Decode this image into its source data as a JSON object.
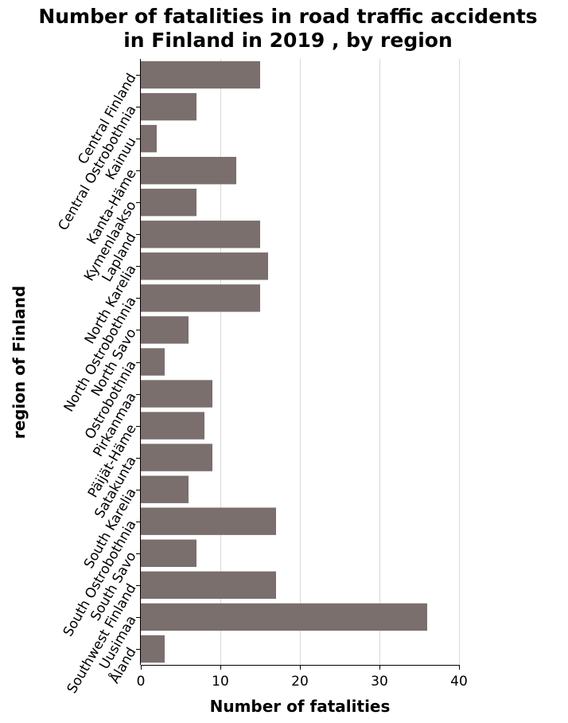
{
  "chart_data": {
    "type": "bar",
    "orientation": "horizontal",
    "title_lines": [
      "Number of fatalities in road traffic accidents",
      "in Finland in 2019 , by region"
    ],
    "xlabel": "Number of fatalities",
    "ylabel": "region of Finland",
    "xlim": [
      0,
      40
    ],
    "xticks": [
      0,
      10,
      20,
      30,
      40
    ],
    "grid": true,
    "bar_color": "#7a6f6d",
    "categories": [
      "Central Finland",
      "Central Ostrobothnia",
      "Kainuu",
      "Kanta-Häme",
      "Kymenlaakso",
      "Lapland",
      "North Karelia",
      "North Ostrobothnia",
      "North Savo",
      "Ostrobothnia",
      "Pirkanmaa",
      "Päijät-Häme",
      "Satakunta",
      "South Karelia",
      "South Ostrobothnia",
      "South Savo",
      "Southwest Finland",
      "Uusimaa",
      "Åland"
    ],
    "values": [
      15,
      7,
      2,
      12,
      7,
      15,
      16,
      15,
      6,
      3,
      9,
      8,
      9,
      6,
      17,
      7,
      17,
      36,
      3
    ]
  }
}
